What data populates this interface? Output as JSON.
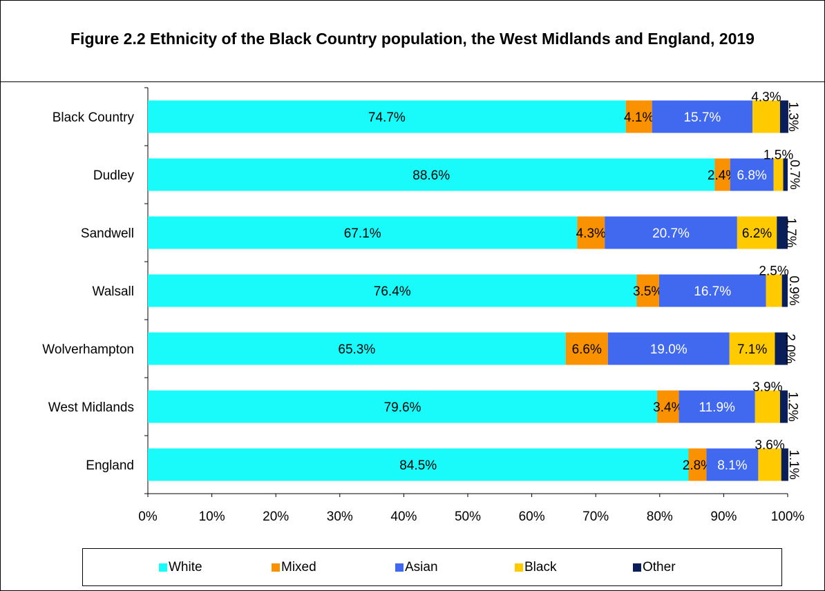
{
  "title": "Figure 2.2 Ethnicity of the Black Country population, the West Midlands and England, 2019",
  "colors": {
    "White": "#19FAFA",
    "Mixed": "#FA9100",
    "Asian": "#4169F0",
    "Black": "#FFCB00",
    "Other": "#0A1E5A"
  },
  "chart_data": {
    "type": "bar",
    "orientation": "horizontal",
    "stacked": true,
    "stack_mode": "percent",
    "title": "Figure 2.2 Ethnicity of the Black Country population, the West Midlands and England, 2019",
    "xlabel": "",
    "ylabel": "",
    "xlim": [
      0,
      100
    ],
    "x_ticks": [
      "0%",
      "10%",
      "20%",
      "30%",
      "40%",
      "50%",
      "60%",
      "70%",
      "80%",
      "90%",
      "100%"
    ],
    "grid": false,
    "legend_position": "bottom",
    "categories": [
      "Black Country",
      "Dudley",
      "Sandwell",
      "Walsall",
      "Wolverhampton",
      "West Midlands",
      "England"
    ],
    "series": [
      {
        "name": "White",
        "values": [
          74.7,
          88.6,
          67.1,
          76.4,
          65.3,
          79.6,
          84.5
        ]
      },
      {
        "name": "Mixed",
        "values": [
          4.1,
          2.4,
          4.3,
          3.5,
          6.6,
          3.4,
          2.8
        ]
      },
      {
        "name": "Asian",
        "values": [
          15.7,
          6.8,
          20.7,
          16.7,
          19.0,
          11.9,
          8.1
        ]
      },
      {
        "name": "Black",
        "values": [
          4.3,
          1.5,
          6.2,
          2.5,
          7.1,
          3.9,
          3.6
        ]
      },
      {
        "name": "Other",
        "values": [
          1.3,
          0.7,
          1.7,
          0.9,
          2.0,
          1.2,
          1.1
        ]
      }
    ],
    "data_labels": [
      [
        "74.7%",
        "4.1%",
        "15.7%",
        "4.3%",
        "1.3%"
      ],
      [
        "88.6%",
        "2.4%",
        "6.8%",
        "1.5%",
        "0.7%"
      ],
      [
        "67.1%",
        "4.3%",
        "20.7%",
        "6.2%",
        "1.7%"
      ],
      [
        "76.4%",
        "3.5%",
        "16.7%",
        "2.5%",
        "0.9%"
      ],
      [
        "65.3%",
        "6.6%",
        "19.0%",
        "7.1%",
        "2.0%"
      ],
      [
        "79.6%",
        "3.4%",
        "11.9%",
        "3.9%",
        "1.2%"
      ],
      [
        "84.5%",
        "2.8%",
        "8.1%",
        "3.6%",
        "1.1%"
      ]
    ]
  }
}
